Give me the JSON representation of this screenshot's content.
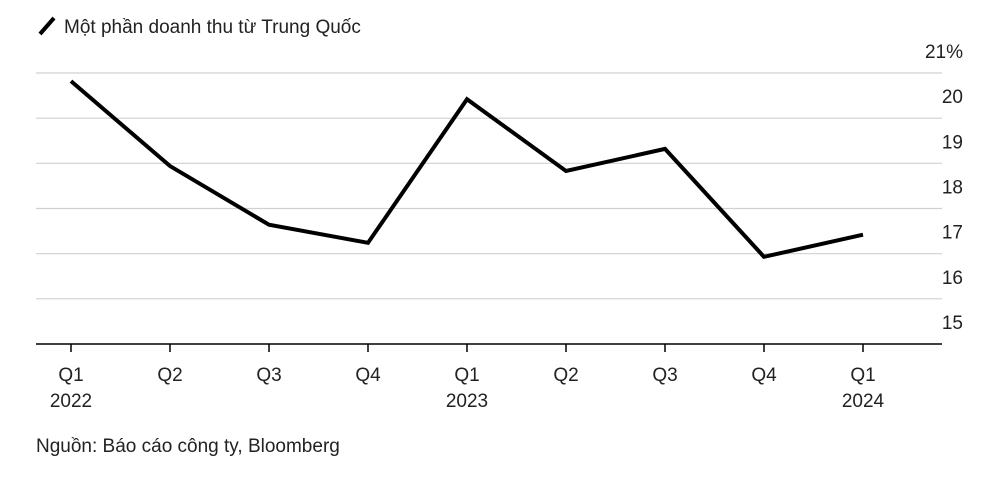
{
  "chart_data": {
    "type": "line",
    "source": "Nguồn: Báo cáo công ty, Bloomberg",
    "categories": [
      "Q1",
      "Q2",
      "Q3",
      "Q4",
      "Q1",
      "Q2",
      "Q3",
      "Q4",
      "Q1"
    ],
    "year_labels": [
      "2022",
      null,
      null,
      null,
      "2023",
      null,
      null,
      null,
      "2024"
    ],
    "series": [
      {
        "name": "Một phần doanh thu từ Trung Quốc",
        "color": "#000000",
        "values": [
          20.82,
          18.94,
          17.64,
          17.24,
          20.42,
          18.83,
          19.32,
          16.93,
          17.42
        ]
      }
    ],
    "ylim": [
      15,
      21
    ],
    "yticks": [
      15,
      16,
      17,
      18,
      19,
      20,
      {
        "value": 21,
        "label": "21%"
      }
    ],
    "grid": true
  }
}
